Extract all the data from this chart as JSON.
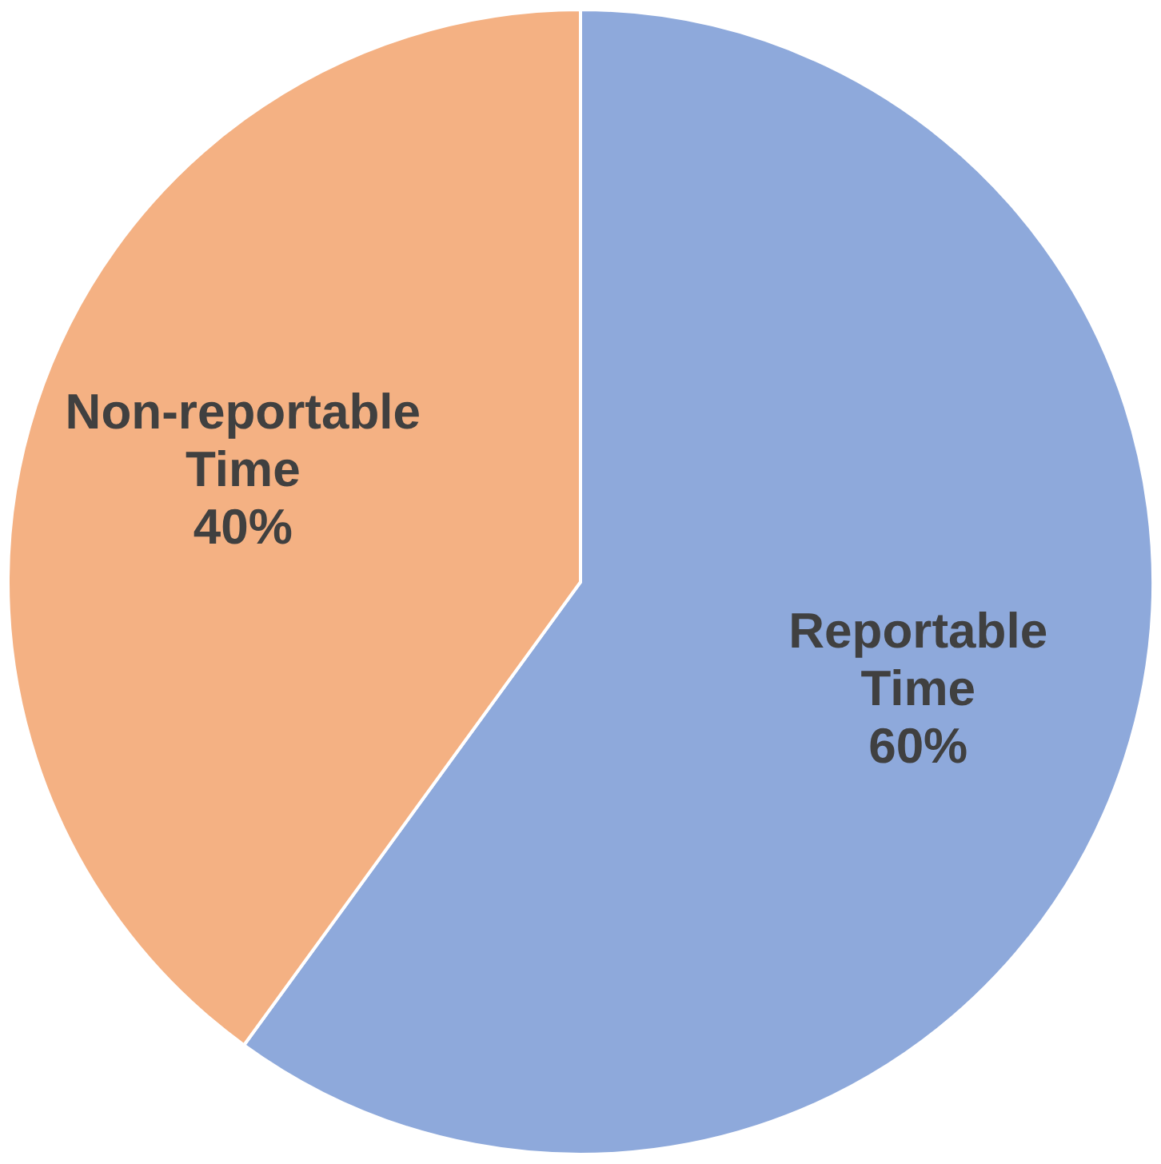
{
  "chart_data": {
    "type": "pie",
    "categories": [
      "Reportable Time",
      "Non-reportable Time"
    ],
    "values": [
      60,
      40
    ],
    "colors": [
      "#8ea9db",
      "#f4b183"
    ],
    "value_labels": [
      "60%",
      "40%"
    ],
    "legend": false
  }
}
